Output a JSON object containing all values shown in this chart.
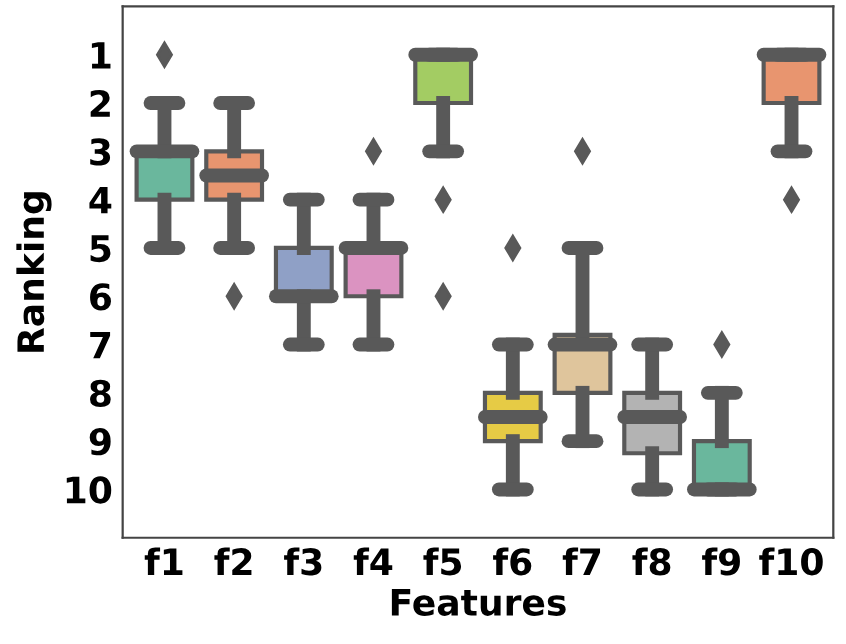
{
  "chart_data": {
    "type": "box",
    "xlabel": "Features",
    "ylabel": "Ranking",
    "categories": [
      "f1",
      "f2",
      "f3",
      "f4",
      "f5",
      "f6",
      "f7",
      "f8",
      "f9",
      "f10"
    ],
    "colors": [
      "#6ab79d",
      "#e8956f",
      "#8fa0c6",
      "#db93c1",
      "#a3cc63",
      "#e6cb45",
      "#dfc59c",
      "#b3b3b3",
      "#6ab79d",
      "#e8956f"
    ],
    "boxes": [
      {
        "low": 2,
        "q1": 3,
        "median": 3,
        "q3": 4,
        "high": 5,
        "outliers": [
          1
        ]
      },
      {
        "low": 2,
        "q1": 3,
        "median": 3.5,
        "q3": 4,
        "high": 5,
        "outliers": [
          6
        ]
      },
      {
        "low": 4,
        "q1": 5,
        "median": 6,
        "q3": 6,
        "high": 7
      },
      {
        "low": 4,
        "q1": 5,
        "median": 5,
        "q3": 6,
        "high": 7,
        "outliers": [
          3
        ]
      },
      {
        "low": 1,
        "q1": 1,
        "median": 1,
        "q3": 2,
        "high": 3,
        "outliers": [
          4,
          6
        ]
      },
      {
        "low": 7,
        "q1": 8,
        "median": 8.5,
        "q3": 9,
        "high": 10,
        "outliers": [
          5
        ]
      },
      {
        "low": 5,
        "q1": 6.8,
        "median": 7,
        "q3": 8,
        "high": 9,
        "outliers": [
          3
        ]
      },
      {
        "low": 7,
        "q1": 8,
        "median": 8.5,
        "q3": 9.25,
        "high": 10
      },
      {
        "low": 8,
        "q1": 9,
        "median": 10,
        "q3": 10,
        "high": 10,
        "outliers": [
          7
        ]
      },
      {
        "low": 1,
        "q1": 1,
        "median": 1,
        "q3": 2,
        "high": 3,
        "outliers": [
          4
        ]
      }
    ],
    "ylim": [
      11,
      0
    ],
    "yticks": [
      1,
      2,
      3,
      4,
      5,
      6,
      7,
      8,
      9,
      10
    ],
    "grid": false
  }
}
